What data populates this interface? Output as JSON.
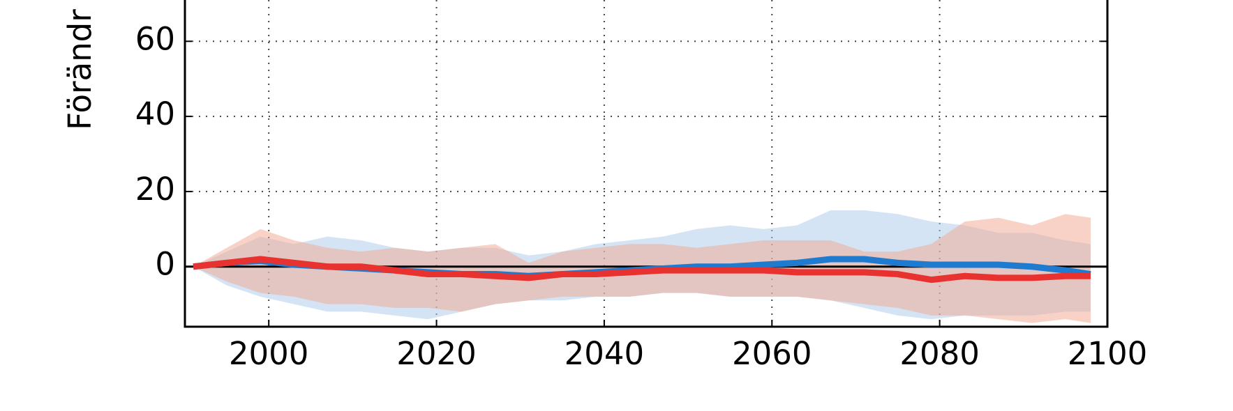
{
  "chart_data": {
    "type": "line",
    "y_label": "Förändr",
    "x": [
      1991,
      1995,
      1999,
      2003,
      2007,
      2011,
      2015,
      2019,
      2023,
      2027,
      2031,
      2035,
      2039,
      2043,
      2047,
      2051,
      2055,
      2059,
      2063,
      2067,
      2071,
      2075,
      2079,
      2083,
      2087,
      2091,
      2095,
      2098
    ],
    "series": [
      {
        "color": "#1f7bd0",
        "band_color": "#a9c9ea",
        "values": [
          0,
          1,
          1.5,
          0.5,
          0,
          -0.5,
          -1,
          -1.5,
          -2,
          -2,
          -2.5,
          -2,
          -1.5,
          -1,
          -0.5,
          0,
          0,
          0.5,
          1,
          2,
          2,
          1,
          0.5,
          0.5,
          0.5,
          0,
          -1,
          -2
        ],
        "upper": [
          0,
          4,
          8,
          6,
          8,
          7,
          5,
          4,
          5,
          5,
          3,
          4,
          6,
          7,
          8,
          10,
          11,
          10,
          11,
          15,
          15,
          14,
          12,
          11,
          9,
          9,
          7,
          6
        ],
        "lower": [
          0,
          -5,
          -8,
          -10,
          -12,
          -12,
          -13,
          -14,
          -12,
          -10,
          -9,
          -9,
          -8,
          -8,
          -7,
          -7,
          -8,
          -8,
          -8,
          -9,
          -11,
          -13,
          -14,
          -13,
          -13,
          -13,
          -12,
          -12
        ]
      },
      {
        "color": "#e8322f",
        "band_color": "#f2a58e",
        "values": [
          0,
          1,
          2,
          1,
          0,
          0,
          -1,
          -2,
          -2,
          -2.5,
          -3,
          -2,
          -2,
          -1.5,
          -1,
          -1,
          -1,
          -1,
          -1.5,
          -1.5,
          -1.5,
          -2,
          -3.5,
          -2.5,
          -3,
          -3,
          -2.5,
          -2.5
        ],
        "upper": [
          0,
          5,
          10,
          7,
          5,
          4,
          5,
          4,
          5,
          6,
          1,
          4,
          5,
          6,
          6,
          5,
          6,
          7,
          7,
          7,
          4,
          4,
          6,
          12,
          13,
          11,
          14,
          13
        ],
        "lower": [
          0,
          -4,
          -7,
          -8,
          -10,
          -10,
          -11,
          -11,
          -12,
          -10,
          -9,
          -8,
          -8,
          -8,
          -7,
          -7,
          -8,
          -8,
          -8,
          -9,
          -10,
          -11,
          -13,
          -13,
          -14,
          -15,
          -14,
          -15
        ]
      }
    ],
    "xlim": [
      1990,
      2100
    ],
    "xticks": [
      2000,
      2020,
      2040,
      2060,
      2080,
      2100
    ],
    "ylim": [
      -16,
      71
    ],
    "yticks": [
      0,
      20,
      40,
      60
    ],
    "grid": true,
    "zero_line": true
  }
}
